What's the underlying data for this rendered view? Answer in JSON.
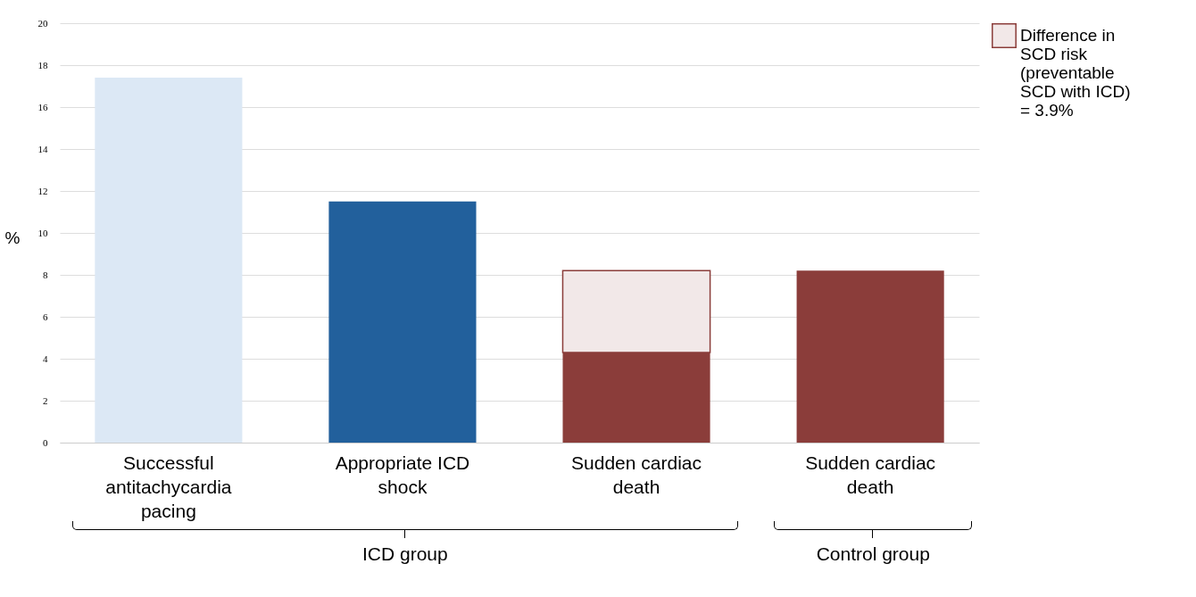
{
  "chart_data": {
    "type": "bar",
    "ylabel": "%",
    "categories": [
      "Successful antitachycardia pacing",
      "Appropriate ICD shock",
      "Sudden cardiac death",
      "Sudden cardiac death"
    ],
    "stacked": true,
    "series": [
      {
        "colors": [
          "#dce8f5",
          "#22609c",
          "#8b3d3a",
          "#8b3d3a"
        ],
        "values": [
          17.4,
          11.5,
          4.3,
          8.2
        ]
      },
      {
        "name": "Difference in SCD risk (preventable SCD with ICD) = 3.9%",
        "color": "#f2e8e8",
        "values": [
          null,
          null,
          3.9,
          null
        ]
      }
    ],
    "ylim": [
      0,
      20
    ],
    "yticks": [
      0,
      2,
      4,
      6,
      8,
      10,
      12,
      14,
      16,
      18,
      20
    ],
    "grid": "y",
    "legend": "top right",
    "annotations": [
      "ICD group",
      "Control group"
    ]
  }
}
